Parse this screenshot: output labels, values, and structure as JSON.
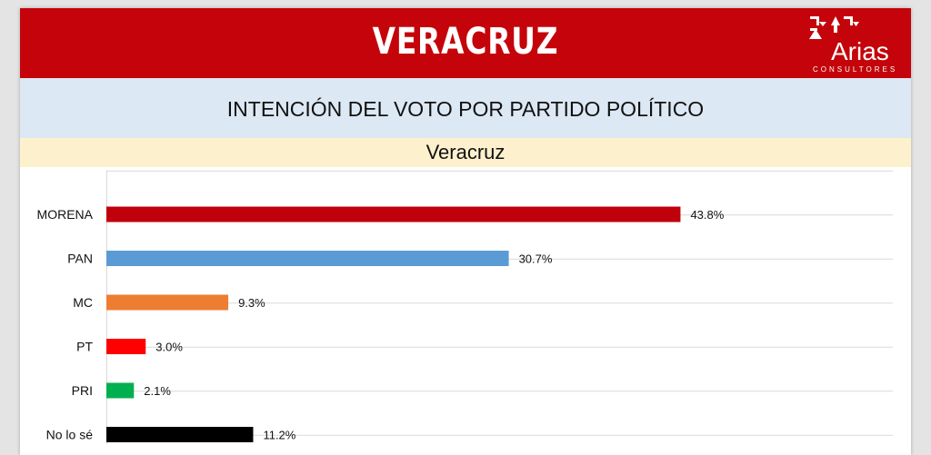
{
  "header": {
    "title": "VERACRUZ"
  },
  "logo": {
    "name": "Arias",
    "subtitle": "CONSULTORES",
    "icon": "arias-logo-icon"
  },
  "chart_data": {
    "type": "bar",
    "orientation": "horizontal",
    "title": "INTENCIÓN DEL VOTO POR PARTIDO POLÍTICO",
    "subtitle": "Veracruz",
    "categories": [
      "MORENA",
      "PAN",
      "MC",
      "PT",
      "PRI",
      "No lo sé"
    ],
    "values": [
      43.8,
      30.7,
      9.3,
      3.0,
      2.1,
      11.2
    ],
    "value_labels": [
      "43.8%",
      "30.7%",
      "9.3%",
      "3.0%",
      "2.1%",
      "11.2%"
    ],
    "colors": [
      "#c0000b",
      "#5b9bd5",
      "#ed7d31",
      "#ff0000",
      "#00b050",
      "#000000"
    ],
    "xlim": [
      0,
      60
    ],
    "grid": true,
    "legend": "none"
  },
  "colors": {
    "header_bg": "#c4040a",
    "subtitle_bg": "#dce8f4",
    "region_bg": "#fdf1cd"
  }
}
